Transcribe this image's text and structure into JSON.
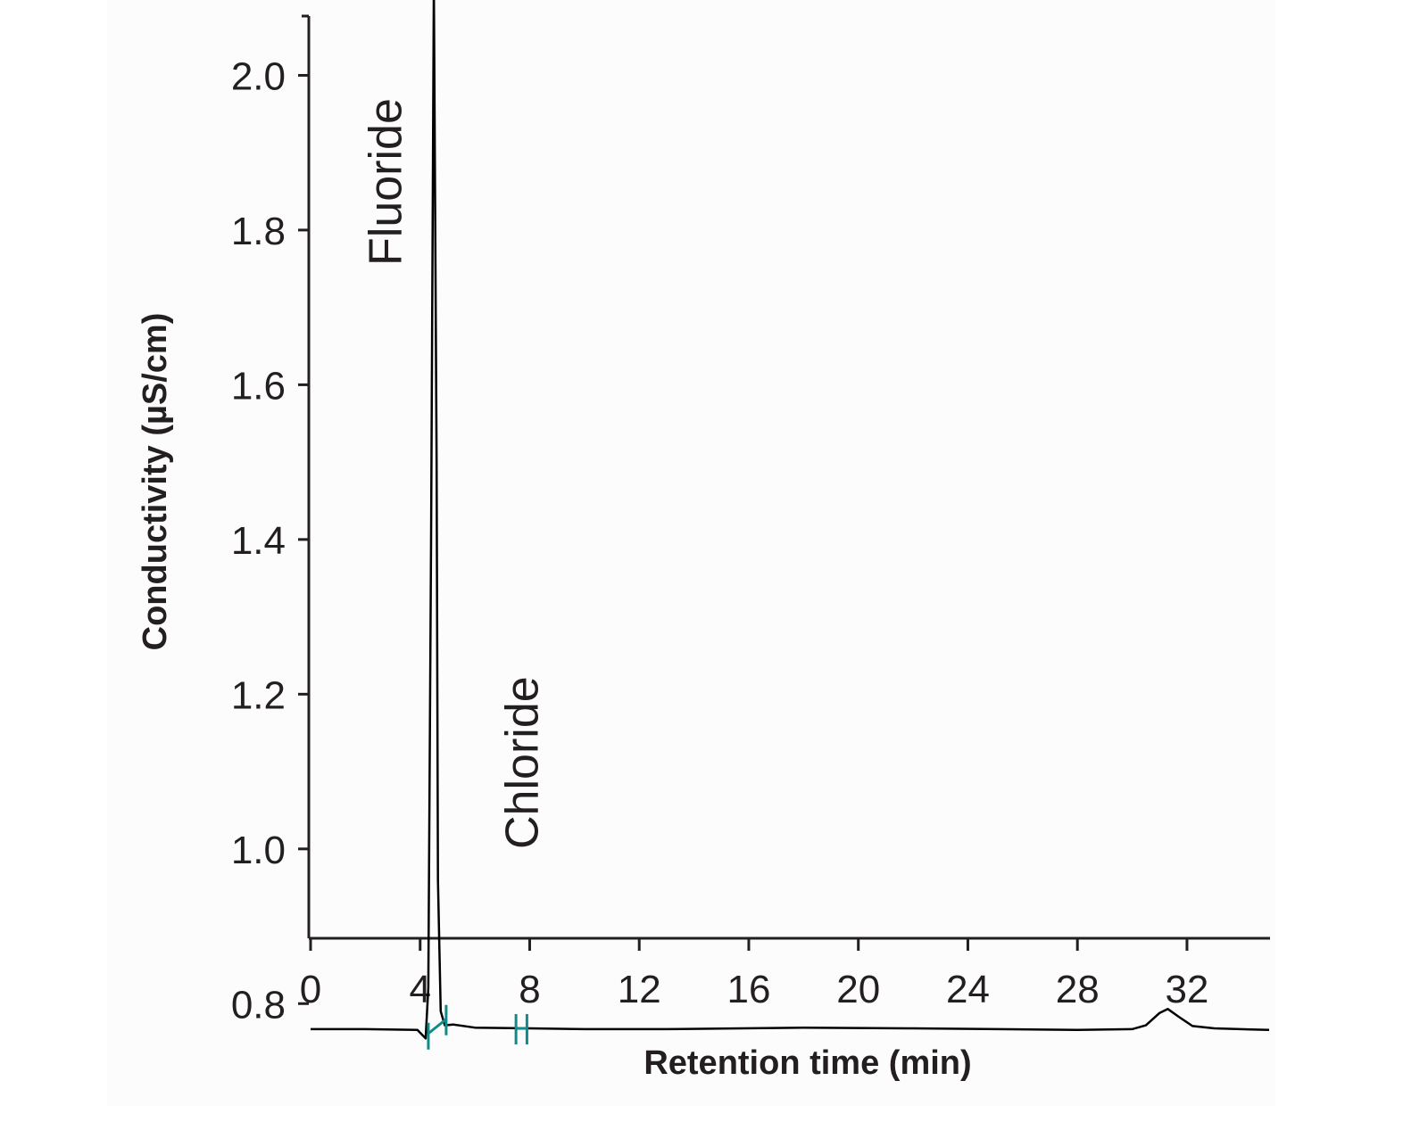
{
  "chart_data": {
    "type": "line",
    "title": "",
    "xlabel": "Retention time (min)",
    "ylabel": "Conductivity (µS/cm)",
    "xlim": [
      0,
      35
    ],
    "ylim": [
      0.7,
      2.2
    ],
    "xticks": [
      0,
      4,
      8,
      12,
      16,
      20,
      24,
      28,
      32
    ],
    "xtick_labels": [
      "0",
      "4",
      "8",
      "12",
      "16",
      "20",
      "24",
      "28",
      "32"
    ],
    "yticks": [
      0.8,
      1.0,
      1.2,
      1.4,
      1.6,
      1.8,
      2.0
    ],
    "ytick_labels": [
      "0.8",
      "1.0",
      "1.2",
      "1.4",
      "1.6",
      "1.8",
      "2.0"
    ],
    "grid": false,
    "line_color": "#000000",
    "marker_color": "#128a8a",
    "series": [
      {
        "x": [
          0,
          2,
          3.9,
          4.2,
          4.3,
          4.4,
          4.5,
          4.6,
          4.65,
          4.75,
          4.9,
          5.2,
          6,
          8,
          10,
          13,
          18,
          22,
          28,
          30,
          30.5,
          31,
          31.3,
          31.7,
          32.2,
          33,
          35
        ],
        "y": [
          0.767,
          0.767,
          0.766,
          0.755,
          0.82,
          1.4,
          2.12,
          1.5,
          0.96,
          0.79,
          0.772,
          0.773,
          0.769,
          0.768,
          0.767,
          0.767,
          0.769,
          0.768,
          0.766,
          0.767,
          0.772,
          0.788,
          0.793,
          0.783,
          0.771,
          0.768,
          0.766
        ]
      }
    ],
    "peaks": [
      {
        "name": "Fluoride",
        "start": 4.3,
        "end": 4.95
      },
      {
        "name": "Chloride",
        "start": 7.5,
        "end": 7.9
      }
    ]
  }
}
